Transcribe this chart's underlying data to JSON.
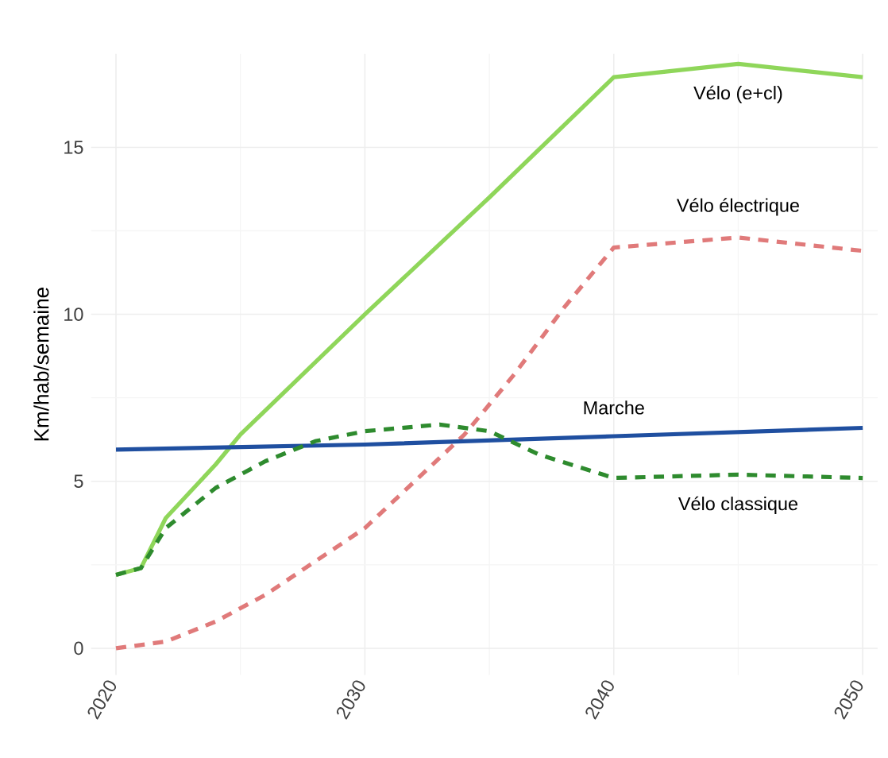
{
  "chart_data": {
    "type": "line",
    "ylabel": "Km/hab/semaine",
    "xlim": [
      2019,
      2050.6
    ],
    "ylim": [
      -0.8,
      17.8
    ],
    "xticks": [
      2020,
      2030,
      2040,
      2050
    ],
    "yticks": [
      0,
      5,
      10,
      15
    ],
    "grid": true,
    "series": [
      {
        "name": "Vélo (e+cl)",
        "color": "#8fd65a",
        "line_style": "solid",
        "x": [
          2020,
          2021,
          2022,
          2023,
          2024,
          2025,
          2030,
          2035,
          2040,
          2045,
          2050
        ],
        "values": [
          2.2,
          2.4,
          3.9,
          4.7,
          5.5,
          6.4,
          10.0,
          13.5,
          17.1,
          17.5,
          17.1
        ]
      },
      {
        "name": "Vélo électrique",
        "color": "#e07a7a",
        "line_style": "dashed",
        "x": [
          2020,
          2022,
          2024,
          2026,
          2028,
          2030,
          2032,
          2034,
          2036,
          2038,
          2040,
          2045,
          2050
        ],
        "values": [
          0,
          0.2,
          0.8,
          1.6,
          2.6,
          3.6,
          5.0,
          6.4,
          8.2,
          10.2,
          12.0,
          12.3,
          11.9
        ]
      },
      {
        "name": "Marche",
        "color": "#1f4fa0",
        "line_style": "solid",
        "x": [
          2020,
          2030,
          2040,
          2050
        ],
        "values": [
          5.95,
          6.1,
          6.35,
          6.6
        ]
      },
      {
        "name": "Vélo classique",
        "color": "#2e8b2e",
        "line_style": "dashed",
        "x": [
          2020,
          2021,
          2022,
          2024,
          2026,
          2028,
          2030,
          2033,
          2035,
          2037,
          2040,
          2045,
          2050
        ],
        "values": [
          2.2,
          2.4,
          3.6,
          4.8,
          5.6,
          6.2,
          6.5,
          6.7,
          6.5,
          5.8,
          5.1,
          5.2,
          5.1
        ]
      }
    ]
  }
}
